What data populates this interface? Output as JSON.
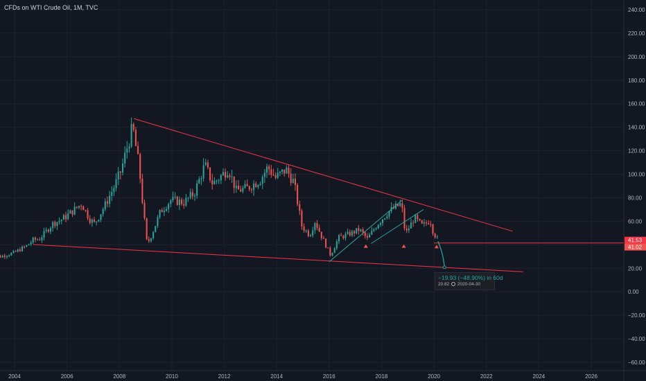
{
  "header": {
    "title": "CFDs on WTI Crude Oil, 1M, TVC"
  },
  "chart_data": {
    "type": "candlestick",
    "title": "CFDs on WTI Crude Oil, 1M, TVC",
    "x_ticks": [
      "2004",
      "2006",
      "2008",
      "2010",
      "2012",
      "2014",
      "2016",
      "2018",
      "2020",
      "2022",
      "2024",
      "2026"
    ],
    "y_ticks": [
      "240.00",
      "220.00",
      "200.00",
      "180.00",
      "160.00",
      "140.00",
      "120.00",
      "100.00",
      "80.00",
      "60.00",
      "40.00",
      "20.00",
      "0.00",
      "−20.00",
      "−40.00",
      "−60.00"
    ],
    "ylim": [
      -64,
      250
    ],
    "xlim": [
      2003.0,
      2027.5
    ],
    "price_path": [
      [
        2003.0,
        29
      ],
      [
        2003.5,
        30
      ],
      [
        2004.0,
        33
      ],
      [
        2004.5,
        39
      ],
      [
        2004.75,
        44
      ],
      [
        2005.0,
        45
      ],
      [
        2005.5,
        58
      ],
      [
        2005.8,
        61
      ],
      [
        2006.0,
        64
      ],
      [
        2006.6,
        75
      ],
      [
        2006.9,
        62
      ],
      [
        2007.1,
        58
      ],
      [
        2007.5,
        74
      ],
      [
        2007.9,
        92
      ],
      [
        2008.1,
        103
      ],
      [
        2008.4,
        128
      ],
      [
        2008.55,
        140
      ],
      [
        2008.8,
        105
      ],
      [
        2008.95,
        70
      ],
      [
        2009.1,
        40
      ],
      [
        2009.3,
        50
      ],
      [
        2009.6,
        68
      ],
      [
        2010.0,
        78
      ],
      [
        2010.5,
        76
      ],
      [
        2010.9,
        84
      ],
      [
        2011.3,
        108
      ],
      [
        2011.6,
        92
      ],
      [
        2011.9,
        98
      ],
      [
        2012.2,
        105
      ],
      [
        2012.5,
        86
      ],
      [
        2012.9,
        88
      ],
      [
        2013.4,
        95
      ],
      [
        2013.7,
        106
      ],
      [
        2014.0,
        97
      ],
      [
        2014.4,
        104
      ],
      [
        2014.7,
        93
      ],
      [
        2015.0,
        56
      ],
      [
        2015.3,
        48
      ],
      [
        2015.5,
        60
      ],
      [
        2015.8,
        45
      ],
      [
        2016.1,
        31
      ],
      [
        2016.4,
        46
      ],
      [
        2016.8,
        49
      ],
      [
        2017.2,
        53
      ],
      [
        2017.5,
        45
      ],
      [
        2017.9,
        58
      ],
      [
        2018.3,
        68
      ],
      [
        2018.8,
        75
      ],
      [
        2018.95,
        49
      ],
      [
        2019.3,
        63
      ],
      [
        2019.6,
        56
      ],
      [
        2019.9,
        61
      ],
      [
        2020.0,
        52
      ],
      [
        2020.15,
        45
      ]
    ],
    "trendlines": [
      {
        "points": [
          [
            2008.55,
            147.3
          ],
          [
            2023.0,
            51.5
          ]
        ],
        "color": "#f23645"
      },
      {
        "points": [
          [
            2004.7,
            40.2
          ],
          [
            2023.4,
            17.0
          ]
        ],
        "color": "#f23645"
      },
      {
        "points": [
          [
            2016.0,
            25.5
          ],
          [
            2018.8,
            78.2
          ]
        ],
        "color": "#26a69a"
      },
      {
        "points": [
          [
            2017.6,
            41.0
          ],
          [
            2019.6,
            70.0
          ]
        ],
        "color": "#26a69a"
      }
    ],
    "horizontal_line": {
      "value": 41.53,
      "from": 2020.0,
      "color": "#f23645"
    },
    "markers": [
      {
        "x": 2017.4,
        "y": 38.6
      },
      {
        "x": 2018.85,
        "y": 38.6
      },
      {
        "x": 2020.1,
        "y": 38.2
      }
    ],
    "projection": {
      "points": [
        [
          2020.15,
          43
        ],
        [
          2020.35,
          33
        ],
        [
          2020.4,
          20.82
        ]
      ],
      "color": "#26a69a"
    },
    "price_labels": [
      {
        "text": "41.53",
        "value": 41.53,
        "color": "#f23645"
      },
      {
        "text": "41.02",
        "value": 41.02,
        "color": "#ef5350"
      }
    ],
    "annotation": {
      "line1": "−19.93 (−48.90%) in 60d",
      "line2_value": "20.82",
      "line2_date": "2020-04-30"
    },
    "colors": {
      "up": "#26a69a",
      "down": "#ef5350",
      "background": "#131722",
      "grid": "#1e222d",
      "axis_text": "#b2b5be"
    }
  }
}
